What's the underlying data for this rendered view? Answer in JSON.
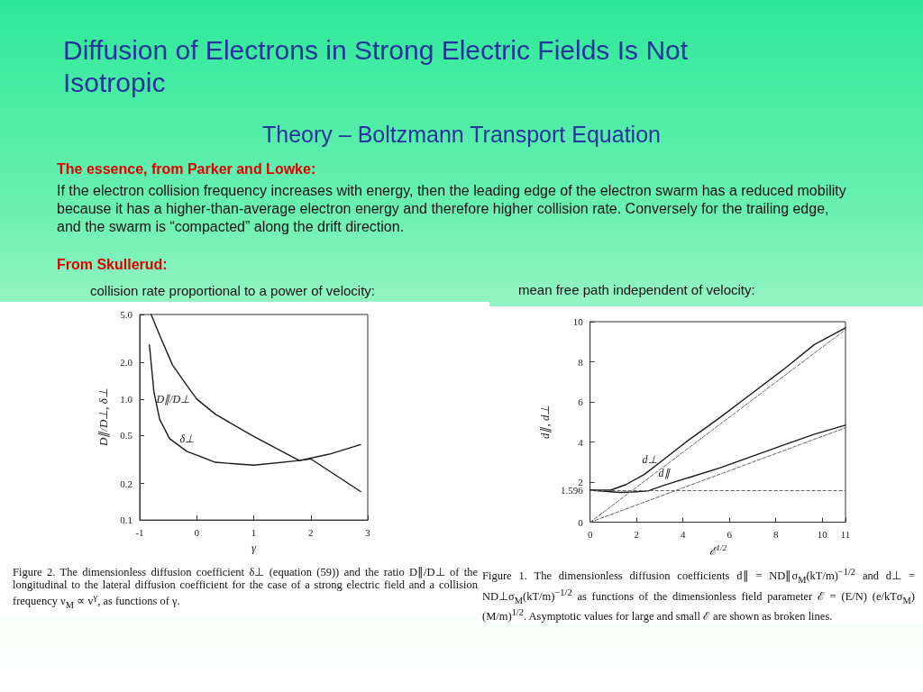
{
  "chart_data": [
    {
      "type": "line",
      "title": "collision rate proportional to a power of velocity:",
      "xlabel": "γ",
      "ylabel": "D∥/D⊥, δ⊥",
      "log": "y",
      "grid": false,
      "xlim": [
        -1,
        3
      ],
      "xticks": [
        -1,
        0,
        1,
        2,
        3
      ],
      "ylim": [
        0.1,
        5
      ],
      "yticks": [
        0.1,
        0.2,
        0.5,
        {
          "value": 1,
          "label": "1.0"
        },
        {
          "value": 2,
          "label": "2.0"
        },
        {
          "value": 5,
          "label": "5.0"
        }
      ],
      "series": [
        {
          "name": "D∥/D⊥",
          "color": "#1a1a1a",
          "x": [
            -0.8,
            -0.65,
            -0.425,
            -0.225,
            0,
            0.325,
            1.0,
            1.8,
            2.0,
            2.875
          ],
          "values": [
            5.0,
            3.37,
            1.91,
            1.4,
            1.0,
            0.75,
            0.49,
            0.31,
            0.32,
            0.172
          ]
        },
        {
          "name": "δ⊥",
          "color": "#1a1a1a",
          "x": [
            -0.83,
            -0.75,
            -0.65,
            -0.475,
            -0.175,
            0.325,
            1.0,
            1.8,
            2.325,
            2.875
          ],
          "values": [
            2.8,
            1.14,
            0.68,
            0.47,
            0.37,
            0.3,
            0.284,
            0.31,
            0.35,
            0.42
          ]
        }
      ],
      "annotations": [
        "Diffusion of Electrons in Strong Electric Fields Is Not Isotropic",
        "Theory – Boltzmann Transport Equation",
        "The essence, from Parker and Lowke:",
        "If the electron collision frequency increases with energy, then the leading edge of the electron swarm has a reduced mobility because it has a higher-than-average electron energy and therefore higher collision rate.  Conversely for the trailing edge, and the swarm is “compacted” along the drift direction.",
        "From Skullerud:",
        "Figure 2.  The dimensionless diffusion coefficient δ⊥ (equation (59)) and the ratio D∥/D⊥ of the longitudinal to the lateral diffusion coefficient for the case of a strong electric field and a collision frequency ν$_{M}$ ∝ v$^{γ}$, as functions of γ."
      ]
    },
    {
      "type": "line",
      "title": "mean free path independent of velocity:",
      "xlabel": "ℰ$^{1/2}$",
      "ylabel": "d∥, d⊥",
      "grid": false,
      "xlim": [
        0,
        11
      ],
      "xticks": [
        0,
        2,
        4,
        6,
        8,
        10,
        11
      ],
      "ylim": [
        0,
        10
      ],
      "yticks": [
        0,
        1.596,
        2,
        4,
        6,
        8,
        10
      ],
      "series": [
        {
          "name": "d⊥",
          "color": "#1a1a1a",
          "x": [
            0,
            0.88,
            1.55,
            2.36,
            3.18,
            4.26,
            5.61,
            6.96,
            8.31,
            9.66,
            11
          ],
          "values": [
            1.6,
            1.6,
            1.88,
            2.4,
            3.14,
            4.11,
            5.23,
            6.42,
            7.6,
            8.86,
            9.69
          ]
        },
        {
          "name": "d∥",
          "color": "#1a1a1a",
          "x": [
            0,
            1.28,
            1.82,
            2.5,
            3.18,
            4.26,
            5.61,
            6.96,
            8.31,
            9.66,
            11
          ],
          "values": [
            1.6,
            1.49,
            1.51,
            1.56,
            1.84,
            2.23,
            2.72,
            3.28,
            3.84,
            4.39,
            4.84
          ]
        },
        {
          "type": "line",
          "color": "#666666",
          "line_style": "dashed",
          "x": [
            0,
            11
          ],
          "values": [
            0,
            9.6
          ]
        },
        {
          "type": "line",
          "color": "#666666",
          "line_style": "dashed",
          "x": [
            0,
            11
          ],
          "values": [
            0,
            4.71
          ]
        }
      ],
      "ref_lines": [
        {
          "axis": "y",
          "value": 1.596,
          "color": "#666666",
          "line_style": "dashed"
        }
      ],
      "annotations": [
        "Figure 1.  The dimensionless diffusion coefficients d∥ = ND∥σ$_{M}$(kT/m)$^{−1/2}$ and d⊥ = ND⊥σ$_{M}$(kT/m)$^{−1/2}$ as functions of the dimensionless field parameter ℰ = (E/N) (e/kTσ$_{M}$) (M/m)$^{1/2}$. Asymptotic values for large and small ℰ are shown as broken lines."
      ]
    }
  ]
}
